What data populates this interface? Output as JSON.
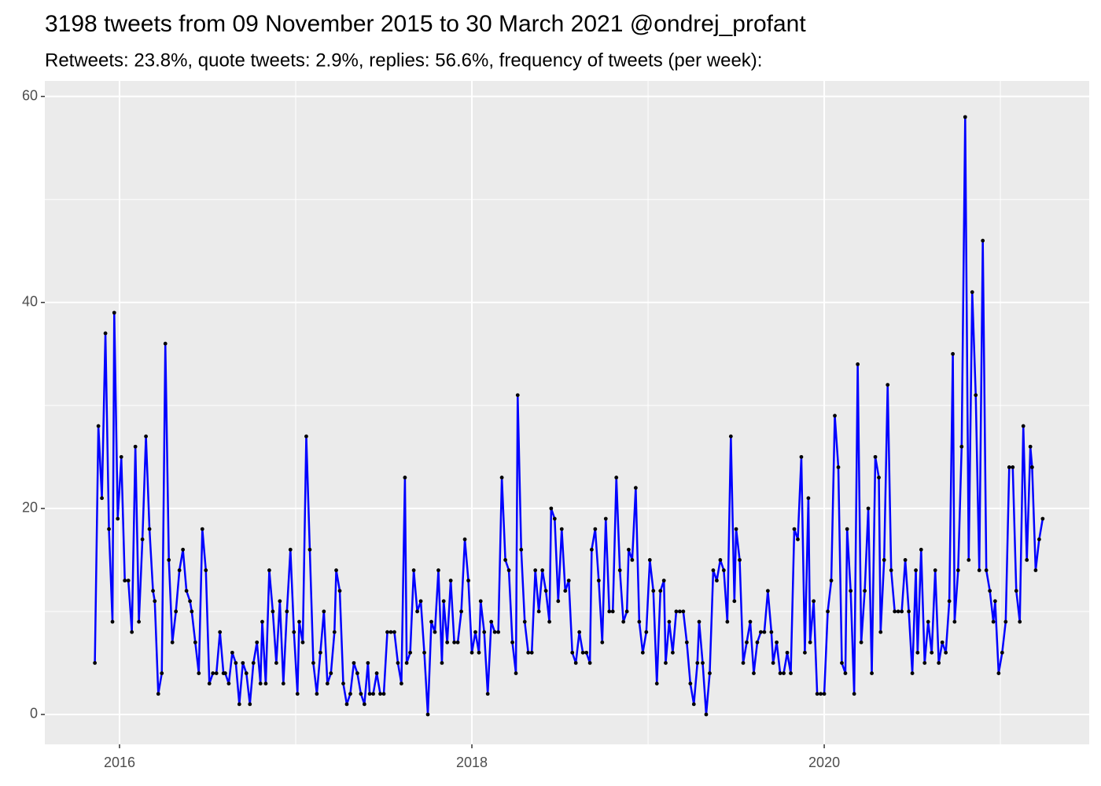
{
  "chart_data": {
    "type": "line",
    "title": "3198 tweets from 09 November 2015 to 30 March 2021 @ondrej_profant",
    "subtitle": "Retweets: 23.8%, quote tweets: 2.9%, replies: 56.6%, frequency of tweets (per week):",
    "x": [
      2015.86,
      2015.88,
      2015.9,
      2015.92,
      2015.94,
      2015.96,
      2015.97,
      2015.99,
      2016.01,
      2016.03,
      2016.05,
      2016.07,
      2016.09,
      2016.11,
      2016.13,
      2016.15,
      2016.17,
      2016.19,
      2016.2,
      2016.22,
      2016.24,
      2016.26,
      2016.28,
      2016.3,
      2016.32,
      2016.34,
      2016.36,
      2016.38,
      2016.4,
      2016.41,
      2016.43,
      2016.45,
      2016.47,
      2016.49,
      2016.51,
      2016.53,
      2016.55,
      2016.57,
      2016.59,
      2016.6,
      2016.62,
      2016.64,
      2016.66,
      2016.68,
      2016.7,
      2016.72,
      2016.74,
      2016.76,
      2016.78,
      2016.8,
      2016.81,
      2016.83,
      2016.85,
      2016.87,
      2016.89,
      2016.91,
      2016.93,
      2016.95,
      2016.97,
      2016.99,
      2017.01,
      2017.02,
      2017.04,
      2017.06,
      2017.08,
      2017.1,
      2017.12,
      2017.14,
      2017.16,
      2017.18,
      2017.2,
      2017.22,
      2017.23,
      2017.25,
      2017.27,
      2017.29,
      2017.31,
      2017.33,
      2017.35,
      2017.37,
      2017.39,
      2017.41,
      2017.42,
      2017.44,
      2017.46,
      2017.48,
      2017.5,
      2017.52,
      2017.54,
      2017.56,
      2017.58,
      2017.6,
      2017.62,
      2017.63,
      2017.65,
      2017.67,
      2017.69,
      2017.71,
      2017.73,
      2017.75,
      2017.77,
      2017.79,
      2017.81,
      2017.83,
      2017.84,
      2017.86,
      2017.88,
      2017.9,
      2017.92,
      2017.94,
      2017.96,
      2017.98,
      2018,
      2018.02,
      2018.04,
      2018.05,
      2018.07,
      2018.09,
      2018.11,
      2018.13,
      2018.15,
      2018.17,
      2018.19,
      2018.21,
      2018.23,
      2018.25,
      2018.26,
      2018.28,
      2018.3,
      2018.32,
      2018.34,
      2018.36,
      2018.38,
      2018.4,
      2018.42,
      2018.44,
      2018.45,
      2018.47,
      2018.49,
      2018.51,
      2018.53,
      2018.55,
      2018.57,
      2018.59,
      2018.61,
      2018.63,
      2018.65,
      2018.67,
      2018.68,
      2018.7,
      2018.72,
      2018.74,
      2018.76,
      2018.78,
      2018.8,
      2018.82,
      2018.84,
      2018.86,
      2018.88,
      2018.89,
      2018.91,
      2018.93,
      2018.95,
      2018.97,
      2018.99,
      2019.01,
      2019.03,
      2019.05,
      2019.07,
      2019.09,
      2019.1,
      2019.12,
      2019.14,
      2019.16,
      2019.18,
      2019.2,
      2019.22,
      2019.24,
      2019.26,
      2019.28,
      2019.29,
      2019.31,
      2019.33,
      2019.35,
      2019.37,
      2019.39,
      2019.41,
      2019.43,
      2019.45,
      2019.47,
      2019.49,
      2019.5,
      2019.52,
      2019.54,
      2019.56,
      2019.58,
      2019.6,
      2019.62,
      2019.64,
      2019.66,
      2019.68,
      2019.7,
      2019.71,
      2019.73,
      2019.75,
      2019.77,
      2019.79,
      2019.81,
      2019.83,
      2019.85,
      2019.87,
      2019.89,
      2019.91,
      2019.92,
      2019.94,
      2019.96,
      2019.98,
      2020,
      2020.02,
      2020.04,
      2020.06,
      2020.08,
      2020.1,
      2020.12,
      2020.13,
      2020.15,
      2020.17,
      2020.19,
      2020.21,
      2020.23,
      2020.25,
      2020.27,
      2020.29,
      2020.31,
      2020.32,
      2020.34,
      2020.36,
      2020.38,
      2020.4,
      2020.42,
      2020.44,
      2020.46,
      2020.48,
      2020.5,
      2020.52,
      2020.53,
      2020.55,
      2020.57,
      2020.59,
      2020.61,
      2020.63,
      2020.65,
      2020.67,
      2020.69,
      2020.71,
      2020.73,
      2020.74,
      2020.76,
      2020.78,
      2020.8,
      2020.82,
      2020.84,
      2020.86,
      2020.88,
      2020.9,
      2020.92,
      2020.94,
      2020.96,
      2020.97,
      2020.99,
      2021.01,
      2021.03,
      2021.05,
      2021.07,
      2021.09,
      2021.11,
      2021.13,
      2021.15,
      2021.17,
      2021.18,
      2021.2,
      2021.22,
      2021.24
    ],
    "values": [
      5,
      28,
      21,
      37,
      18,
      9,
      39,
      19,
      25,
      13,
      13,
      8,
      26,
      9,
      17,
      27,
      18,
      12,
      11,
      2,
      4,
      36,
      15,
      7,
      10,
      14,
      16,
      12,
      11,
      10,
      7,
      4,
      18,
      14,
      3,
      4,
      4,
      8,
      4,
      4,
      3,
      6,
      5,
      1,
      5,
      4,
      1,
      5,
      7,
      3,
      9,
      3,
      14,
      10,
      5,
      11,
      3,
      10,
      16,
      8,
      2,
      9,
      7,
      27,
      16,
      5,
      2,
      6,
      10,
      3,
      4,
      8,
      14,
      12,
      3,
      1,
      2,
      5,
      4,
      2,
      1,
      5,
      2,
      2,
      4,
      2,
      2,
      8,
      8,
      8,
      5,
      3,
      23,
      5,
      6,
      14,
      10,
      11,
      6,
      0,
      9,
      8,
      14,
      5,
      11,
      7,
      13,
      7,
      7,
      10,
      17,
      13,
      6,
      8,
      6,
      11,
      8,
      2,
      9,
      8,
      8,
      23,
      15,
      14,
      7,
      4,
      31,
      16,
      9,
      6,
      6,
      14,
      10,
      14,
      12,
      9,
      20,
      19,
      11,
      18,
      12,
      13,
      6,
      5,
      8,
      6,
      6,
      5,
      16,
      18,
      13,
      7,
      19,
      10,
      10,
      23,
      14,
      9,
      10,
      16,
      15,
      22,
      9,
      6,
      8,
      15,
      12,
      3,
      12,
      13,
      5,
      9,
      6,
      10,
      10,
      10,
      7,
      3,
      1,
      5,
      9,
      5,
      0,
      4,
      14,
      13,
      15,
      14,
      9,
      27,
      11,
      18,
      15,
      5,
      7,
      9,
      4,
      7,
      8,
      8,
      12,
      8,
      5,
      7,
      4,
      4,
      6,
      4,
      18,
      17,
      25,
      6,
      21,
      7,
      11,
      2,
      2,
      2,
      10,
      13,
      29,
      24,
      5,
      4,
      18,
      12,
      2,
      34,
      7,
      12,
      20,
      4,
      25,
      23,
      8,
      15,
      32,
      14,
      10,
      10,
      10,
      15,
      10,
      4,
      14,
      6,
      16,
      5,
      9,
      6,
      14,
      5,
      7,
      6,
      11,
      35,
      9,
      14,
      26,
      58,
      15,
      41,
      31,
      14,
      46,
      14,
      12,
      9,
      11,
      4,
      6,
      9,
      24,
      24,
      12,
      9,
      28,
      15,
      26,
      24,
      14,
      17,
      19
    ],
    "color": "#0000ff",
    "marker_color": "#000000",
    "xlim": [
      2015.576,
      2021.504
    ],
    "xticks": [
      2016,
      2018,
      2020
    ],
    "ylim": [
      -2.9,
      61.5
    ],
    "yticks": [
      0,
      20,
      40,
      60
    ],
    "grid": true
  }
}
